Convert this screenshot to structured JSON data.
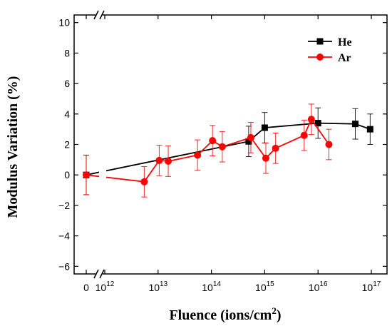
{
  "chart_data": {
    "type": "line",
    "title": "",
    "xlabel": "Fluence (ions/cm",
    "xlabel_superscript": "2",
    "xlabel_suffix": ")",
    "ylabel": "Modulus Variation (%)",
    "xscale": "log",
    "x_axis_break": true,
    "x_zero_label": "0",
    "x_tick_labels": [
      {
        "exp": 12,
        "base": "10",
        "sup": "12"
      },
      {
        "exp": 13,
        "base": "10",
        "sup": "13"
      },
      {
        "exp": 14,
        "base": "10",
        "sup": "14"
      },
      {
        "exp": 15,
        "base": "10",
        "sup": "15"
      },
      {
        "exp": 16,
        "base": "10",
        "sup": "16"
      },
      {
        "exp": 17,
        "base": "10",
        "sup": "17"
      }
    ],
    "ylim": [
      -6.5,
      10.5
    ],
    "yticks": [
      -6,
      -4,
      -2,
      0,
      2,
      4,
      6,
      8,
      10
    ],
    "grid": false,
    "legend_position": "top-right",
    "series": [
      {
        "name": "He",
        "color": "#000000",
        "marker": "square",
        "points": [
          {
            "x": 0,
            "y": 0.0,
            "err": 1.3
          },
          {
            "x": 500000000000000.0,
            "y": 2.2,
            "err": 1.0
          },
          {
            "x": 1000000000000000.0,
            "y": 3.1,
            "err": 1.0
          },
          {
            "x": 1e+16,
            "y": 3.4,
            "err": 1.0
          },
          {
            "x": 5e+16,
            "y": 3.35,
            "err": 1.0
          },
          {
            "x": 9.5e+16,
            "y": 3.0,
            "err": 1.0
          }
        ]
      },
      {
        "name": "Ar",
        "color": "#ff0000",
        "marker": "circle",
        "points": [
          {
            "x": 0,
            "y": 0.0,
            "err": 1.3
          },
          {
            "x": 5500000000000.0,
            "y": -0.45,
            "err": 1.0
          },
          {
            "x": 10500000000000.0,
            "y": 0.95,
            "err": 1.0
          },
          {
            "x": 15500000000000.0,
            "y": 0.9,
            "err": 1.0
          },
          {
            "x": 55000000000000.0,
            "y": 1.3,
            "err": 1.0
          },
          {
            "x": 105000000000000.0,
            "y": 2.25,
            "err": 1.0
          },
          {
            "x": 160000000000000.0,
            "y": 1.85,
            "err": 1.0
          },
          {
            "x": 550000000000000.0,
            "y": 2.45,
            "err": 1.0
          },
          {
            "x": 1050000000000000.0,
            "y": 1.1,
            "err": 1.0
          },
          {
            "x": 1600000000000000.0,
            "y": 1.75,
            "err": 1.0
          },
          {
            "x": 5500000000000000.0,
            "y": 2.6,
            "err": 1.0
          },
          {
            "x": 7500000000000000.0,
            "y": 3.65,
            "err": 1.0
          },
          {
            "x": 1.6e+16,
            "y": 2.0,
            "err": 1.0
          }
        ]
      }
    ]
  }
}
